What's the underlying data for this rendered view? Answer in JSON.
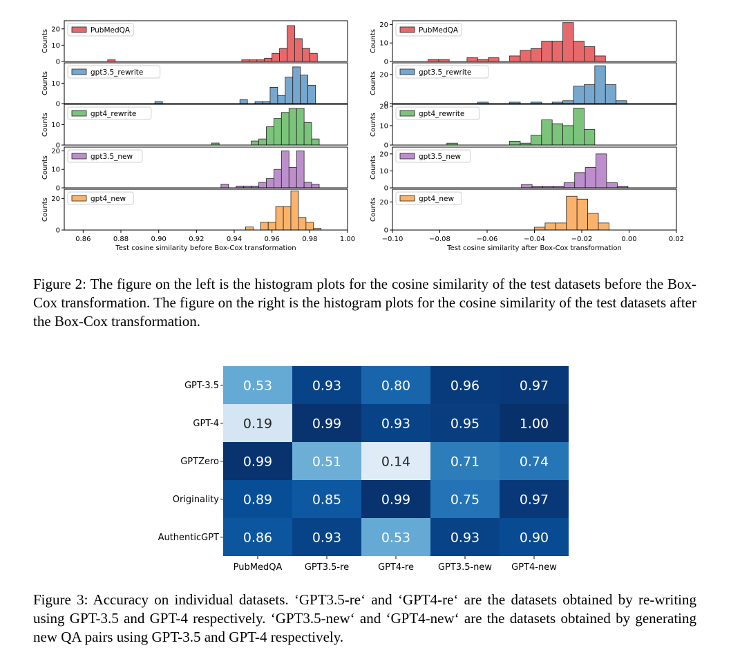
{
  "figure2": {
    "caption_label": "Figure 2:",
    "caption_text": "The figure on the left is the histogram plots for the cosine similarity of the test datasets before the Box-Cox transformation. The figure on the right is the histogram plots for the cosine similarity of the test datasets after the Box-Cox transformation."
  },
  "figure3": {
    "caption_label": "Figure 3:",
    "caption_text": "Accuracy on individual datasets. ‘GPT3.5-re‘ and ‘GPT4-re‘ are the datasets obtained by re-writing using GPT-3.5 and GPT-4 respectively. ‘GPT3.5-new‘ and ‘GPT4-new‘ are the datasets obtained by generating new QA pairs using GPT-3.5 and GPT-4 respectively."
  },
  "chart_data": [
    {
      "type": "bar",
      "subtype": "histogram",
      "xlabel": "Test cosine similarity before Box-Cox transformation",
      "ylabel": "Counts",
      "xlim": [
        0.85,
        1.0
      ],
      "xticks": [
        "0.86",
        "0.88",
        "0.90",
        "0.92",
        "0.94",
        "0.96",
        "0.98",
        "1.00"
      ],
      "legend_position": "top-left",
      "series": [
        {
          "name": "PubMedQA",
          "color": "#e8696b",
          "ylim": [
            0,
            25
          ],
          "yticks": [
            0,
            10,
            20
          ],
          "bins": [
            [
              0.873,
              0.877,
              1
            ],
            [
              0.944,
              0.948,
              1
            ],
            [
              0.948,
              0.952,
              1
            ],
            [
              0.952,
              0.956,
              1
            ],
            [
              0.956,
              0.96,
              2
            ],
            [
              0.96,
              0.964,
              5
            ],
            [
              0.964,
              0.968,
              8
            ],
            [
              0.968,
              0.972,
              22
            ],
            [
              0.972,
              0.976,
              14
            ],
            [
              0.976,
              0.98,
              8
            ],
            [
              0.98,
              0.984,
              5
            ]
          ]
        },
        {
          "name": "gpt3.5_rewrite",
          "color": "#76a7cf",
          "ylim": [
            0,
            20
          ],
          "yticks": [
            0,
            10
          ],
          "bins": [
            [
              0.898,
              0.902,
              1
            ],
            [
              0.943,
              0.947,
              2
            ],
            [
              0.951,
              0.955,
              1
            ],
            [
              0.955,
              0.959,
              1
            ],
            [
              0.959,
              0.963,
              8
            ],
            [
              0.963,
              0.967,
              4
            ],
            [
              0.967,
              0.971,
              13
            ],
            [
              0.971,
              0.975,
              18
            ],
            [
              0.975,
              0.979,
              14
            ],
            [
              0.979,
              0.983,
              9
            ]
          ]
        },
        {
          "name": "gpt4_rewrite",
          "color": "#7cc47c",
          "ylim": [
            0,
            20
          ],
          "yticks": [
            0,
            10
          ],
          "bins": [
            [
              0.928,
              0.932,
              1
            ],
            [
              0.949,
              0.953,
              2
            ],
            [
              0.953,
              0.957,
              3
            ],
            [
              0.957,
              0.961,
              9
            ],
            [
              0.961,
              0.965,
              13
            ],
            [
              0.965,
              0.969,
              16
            ],
            [
              0.969,
              0.973,
              18
            ],
            [
              0.973,
              0.977,
              18
            ],
            [
              0.977,
              0.981,
              11
            ],
            [
              0.981,
              0.985,
              3
            ]
          ]
        },
        {
          "name": "gpt3.5_new",
          "color": "#bc8fcc",
          "ylim": [
            0,
            22
          ],
          "yticks": [
            0,
            10,
            20
          ],
          "bins": [
            [
              0.933,
              0.937,
              2
            ],
            [
              0.941,
              0.945,
              1
            ],
            [
              0.945,
              0.949,
              1
            ],
            [
              0.949,
              0.953,
              1
            ],
            [
              0.953,
              0.957,
              3
            ],
            [
              0.957,
              0.961,
              5
            ],
            [
              0.961,
              0.965,
              10
            ],
            [
              0.965,
              0.969,
              20
            ],
            [
              0.969,
              0.973,
              11
            ],
            [
              0.973,
              0.977,
              20
            ],
            [
              0.977,
              0.981,
              3
            ],
            [
              0.981,
              0.985,
              2
            ]
          ]
        },
        {
          "name": "gpt4_new",
          "color": "#fbb36b",
          "ylim": [
            0,
            26
          ],
          "yticks": [
            0,
            20
          ],
          "bins": [
            [
              0.946,
              0.95,
              2
            ],
            [
              0.954,
              0.958,
              5
            ],
            [
              0.958,
              0.962,
              5
            ],
            [
              0.962,
              0.966,
              15
            ],
            [
              0.966,
              0.97,
              15
            ],
            [
              0.97,
              0.974,
              25
            ],
            [
              0.974,
              0.978,
              8
            ],
            [
              0.978,
              0.982,
              5
            ],
            [
              0.982,
              0.986,
              1
            ]
          ]
        }
      ]
    },
    {
      "type": "bar",
      "subtype": "histogram",
      "xlabel": "Test cosine similarity after Box-Cox transformation",
      "ylabel": "Counts",
      "xlim": [
        -0.1,
        0.02
      ],
      "xticks": [
        "−0.10",
        "−0.08",
        "−0.06",
        "−0.04",
        "−0.02",
        "0.00",
        "0.02"
      ],
      "legend_position": "top-left",
      "series": [
        {
          "name": "PubMedQA",
          "color": "#e8696b",
          "ylim": [
            0,
            22
          ],
          "yticks": [
            0,
            10,
            20
          ],
          "bins": [
            [
              -0.085,
              -0.0805,
              1
            ],
            [
              -0.0805,
              -0.076,
              1
            ],
            [
              -0.0685,
              -0.064,
              2
            ],
            [
              -0.064,
              -0.0595,
              1
            ],
            [
              -0.0595,
              -0.055,
              2
            ],
            [
              -0.0505,
              -0.046,
              3
            ],
            [
              -0.046,
              -0.0415,
              6
            ],
            [
              -0.0415,
              -0.037,
              7
            ],
            [
              -0.037,
              -0.0325,
              11
            ],
            [
              -0.0325,
              -0.028,
              11
            ],
            [
              -0.028,
              -0.0235,
              21
            ],
            [
              -0.0235,
              -0.019,
              11
            ],
            [
              -0.019,
              -0.0145,
              8
            ],
            [
              -0.0145,
              -0.01,
              3
            ]
          ]
        },
        {
          "name": "gpt3.5_rewrite",
          "color": "#76a7cf",
          "ylim": [
            0,
            28
          ],
          "yticks": [
            0,
            20
          ],
          "bins": [
            [
              -0.064,
              -0.0595,
              1
            ],
            [
              -0.0505,
              -0.046,
              1
            ],
            [
              -0.0415,
              -0.037,
              1
            ],
            [
              -0.0325,
              -0.028,
              1
            ],
            [
              -0.028,
              -0.0235,
              2
            ],
            [
              -0.0235,
              -0.019,
              12
            ],
            [
              -0.019,
              -0.0145,
              13
            ],
            [
              -0.0145,
              -0.01,
              26
            ],
            [
              -0.01,
              -0.0055,
              13
            ],
            [
              -0.0055,
              -0.001,
              2
            ]
          ]
        },
        {
          "name": "gpt4_rewrite",
          "color": "#7cc47c",
          "ylim": [
            0,
            21
          ],
          "yticks": [
            0,
            10,
            20
          ],
          "bins": [
            [
              -0.077,
              -0.0725,
              1
            ],
            [
              -0.0505,
              -0.046,
              2
            ],
            [
              -0.046,
              -0.0415,
              1
            ],
            [
              -0.0415,
              -0.037,
              5
            ],
            [
              -0.037,
              -0.0325,
              13
            ],
            [
              -0.0325,
              -0.028,
              11
            ],
            [
              -0.028,
              -0.0235,
              10
            ],
            [
              -0.0235,
              -0.019,
              19
            ],
            [
              -0.019,
              -0.0145,
              8
            ]
          ]
        },
        {
          "name": "gpt3.5_new",
          "color": "#bc8fcc",
          "ylim": [
            0,
            24
          ],
          "yticks": [
            0,
            10,
            20
          ],
          "bins": [
            [
              -0.0455,
              -0.041,
              2
            ],
            [
              -0.041,
              -0.0365,
              1
            ],
            [
              -0.0365,
              -0.032,
              1
            ],
            [
              -0.032,
              -0.0275,
              1
            ],
            [
              -0.0275,
              -0.023,
              3
            ],
            [
              -0.023,
              -0.0185,
              9
            ],
            [
              -0.0185,
              -0.014,
              12
            ],
            [
              -0.014,
              -0.0095,
              20
            ],
            [
              -0.0095,
              -0.005,
              3
            ],
            [
              -0.005,
              -0.0005,
              1
            ]
          ]
        },
        {
          "name": "gpt4_new",
          "color": "#fbb36b",
          "ylim": [
            0,
            29
          ],
          "yticks": [
            0,
            20
          ],
          "bins": [
            [
              -0.04,
              -0.0355,
              2
            ],
            [
              -0.0355,
              -0.031,
              5
            ],
            [
              -0.031,
              -0.0265,
              5
            ],
            [
              -0.0265,
              -0.022,
              24
            ],
            [
              -0.022,
              -0.0175,
              22
            ],
            [
              -0.0175,
              -0.013,
              12
            ],
            [
              -0.013,
              -0.0085,
              5
            ]
          ]
        }
      ]
    },
    {
      "type": "heatmap",
      "colormap": "Blues",
      "rows": [
        "GPT-3.5",
        "GPT-4",
        "GPTZero",
        "Originality",
        "AuthenticGPT"
      ],
      "columns": [
        "PubMedQA",
        "GPT3.5-re",
        "GPT4-re",
        "GPT3.5-new",
        "GPT4-new"
      ],
      "values": [
        [
          0.53,
          0.93,
          0.8,
          0.96,
          0.97
        ],
        [
          0.19,
          0.99,
          0.93,
          0.95,
          1.0
        ],
        [
          0.99,
          0.51,
          0.14,
          0.71,
          0.74
        ],
        [
          0.89,
          0.85,
          0.99,
          0.75,
          0.97
        ],
        [
          0.86,
          0.93,
          0.53,
          0.93,
          0.9
        ]
      ]
    }
  ]
}
